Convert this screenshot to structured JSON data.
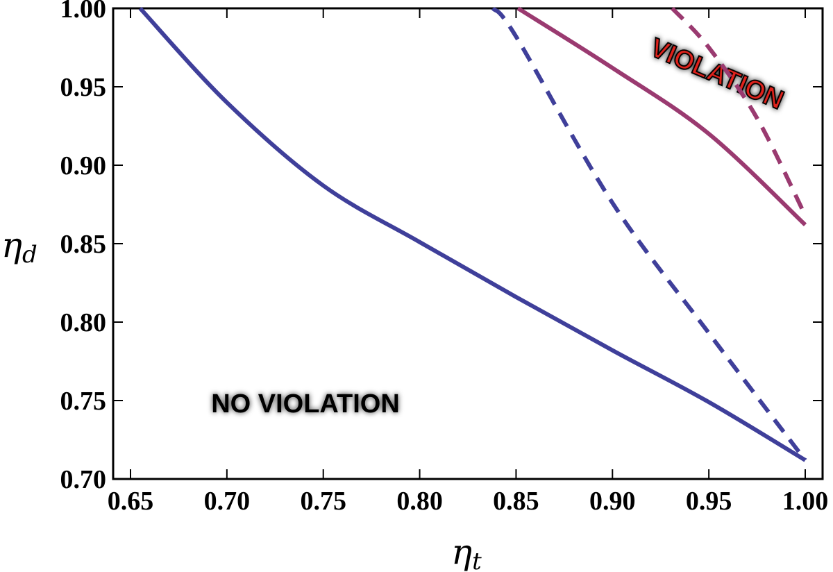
{
  "chart_data": {
    "type": "line",
    "xlabel": {
      "symbol": "η",
      "sub": "t"
    },
    "ylabel": {
      "symbol": "η",
      "sub": "d"
    },
    "annotations": [
      "VIOLATION",
      "NO VIOLATION"
    ],
    "xlim": [
      0.641,
      1.009
    ],
    "ylim": [
      0.7,
      1.0
    ],
    "xticks": [
      {
        "value": 0.65,
        "label": "0.65"
      },
      {
        "value": 0.7,
        "label": "0.70"
      },
      {
        "value": 0.75,
        "label": "0.75"
      },
      {
        "value": 0.8,
        "label": "0.80"
      },
      {
        "value": 0.85,
        "label": "0.85"
      },
      {
        "value": 0.9,
        "label": "0.90"
      },
      {
        "value": 0.95,
        "label": "0.95"
      },
      {
        "value": 1.0,
        "label": "1.00"
      }
    ],
    "yticks": [
      {
        "value": 0.7,
        "label": "0.70"
      },
      {
        "value": 0.75,
        "label": "0.75"
      },
      {
        "value": 0.8,
        "label": "0.80"
      },
      {
        "value": 0.85,
        "label": "0.85"
      },
      {
        "value": 0.9,
        "label": "0.90"
      },
      {
        "value": 0.95,
        "label": "0.95"
      },
      {
        "value": 1.0,
        "label": "1.00"
      }
    ],
    "series": [
      {
        "color": "#3f3f9a",
        "dashed": false,
        "x": [
          0.655,
          0.7,
          0.75,
          0.8,
          0.85,
          0.9,
          0.95,
          1.0
        ],
        "values": [
          1.0,
          0.94,
          0.887,
          0.851,
          0.816,
          0.782,
          0.749,
          0.712
        ]
      },
      {
        "color": "#3f3f9a",
        "dashed": true,
        "x": [
          0.838,
          0.85,
          0.9,
          0.95,
          1.0
        ],
        "values": [
          1.0,
          0.982,
          0.876,
          0.793,
          0.712
        ]
      },
      {
        "color": "#9a3a70",
        "dashed": false,
        "x": [
          0.851,
          0.9,
          0.95,
          1.0
        ],
        "values": [
          1.0,
          0.962,
          0.92,
          0.862
        ]
      },
      {
        "color": "#9a3a70",
        "dashed": true,
        "x": [
          0.931,
          0.95,
          0.975,
          1.0
        ],
        "values": [
          1.0,
          0.975,
          0.93,
          0.868
        ]
      }
    ]
  }
}
